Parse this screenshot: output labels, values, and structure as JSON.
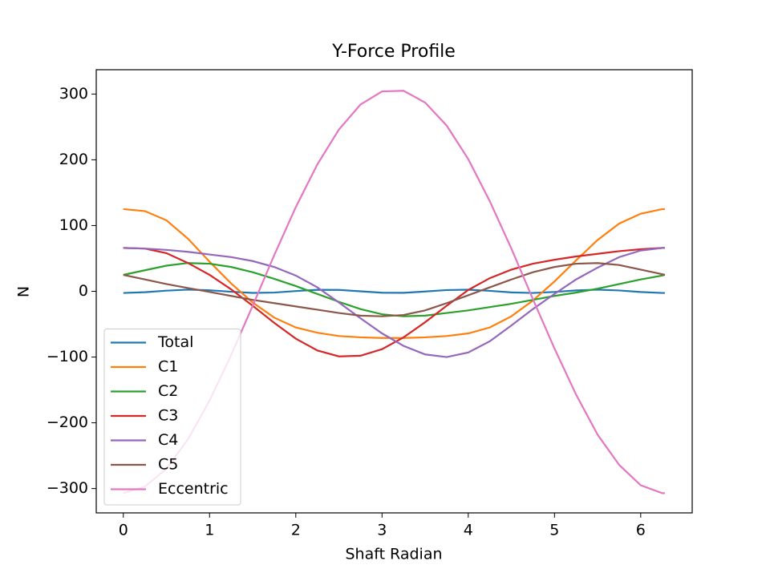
{
  "chart_data": {
    "type": "line",
    "title": "Y-Force Profile",
    "xlabel": "Shaft Radian",
    "ylabel": "N",
    "x": [
      0,
      0.25,
      0.5,
      0.75,
      1,
      1.25,
      1.5,
      1.75,
      2,
      2.25,
      2.5,
      2.75,
      3,
      3.25,
      3.5,
      3.75,
      4,
      4.25,
      4.5,
      4.75,
      5,
      5.25,
      5.5,
      5.75,
      6,
      6.25,
      6.28
    ],
    "series": [
      {
        "name": "Total",
        "color": "#1f77b4",
        "values": [
          -2.5,
          -1.4,
          1,
          2.5,
          1.6,
          -0.7,
          -2.4,
          -1.9,
          0.4,
          2.3,
          2.1,
          0,
          -2.1,
          -2.3,
          -0.3,
          1.9,
          2.4,
          0.7,
          -1.7,
          -2.5,
          -1,
          1.4,
          2.5,
          1.3,
          -1.1,
          -2.5,
          -2.5
        ]
      },
      {
        "name": "C1",
        "color": "#ff7f0e",
        "values": [
          125,
          122,
          108,
          80,
          45,
          12,
          -17,
          -40,
          -55,
          -63,
          -68,
          -70,
          -71,
          -71,
          -70,
          -68,
          -64,
          -55,
          -38,
          -14,
          15,
          47,
          78,
          103,
          118,
          125,
          125
        ]
      },
      {
        "name": "C2",
        "color": "#2ca02c",
        "values": [
          25,
          32,
          39,
          43,
          42,
          37,
          29,
          19,
          8,
          -4,
          -16,
          -27,
          -35,
          -38,
          -37,
          -33,
          -29,
          -24,
          -19,
          -13,
          -7,
          -2,
          4,
          11,
          18,
          24,
          25
        ]
      },
      {
        "name": "C3",
        "color": "#d62728",
        "values": [
          66,
          65,
          58,
          43,
          25,
          3,
          -22,
          -48,
          -72,
          -90,
          -99,
          -98,
          -88,
          -70,
          -47,
          -22,
          2,
          20,
          33,
          42,
          48,
          53,
          57,
          61,
          64,
          66,
          66
        ]
      },
      {
        "name": "C4",
        "color": "#9467bd",
        "values": [
          66,
          65,
          63,
          60,
          56,
          52,
          46,
          37,
          24,
          6,
          -17,
          -41,
          -64,
          -83,
          -96,
          -100,
          -93,
          -76,
          -52,
          -27,
          -4,
          18,
          36,
          52,
          62,
          66,
          66
        ]
      },
      {
        "name": "C5",
        "color": "#8c564b",
        "values": [
          25,
          18,
          11,
          5,
          -1,
          -7,
          -13,
          -18,
          -23,
          -28,
          -33,
          -37,
          -38,
          -36,
          -29,
          -18,
          -6,
          6,
          18,
          29,
          37,
          42,
          43,
          40,
          33,
          26,
          25
        ]
      },
      {
        "name": "Eccentric",
        "color": "#e377c2",
        "values": [
          -307,
          -297,
          -270,
          -225,
          -166,
          -97,
          -22,
          55,
          128,
          193,
          246,
          284,
          304,
          305,
          287,
          252,
          201,
          137,
          65,
          -12,
          -87,
          -157,
          -218,
          -264,
          -295,
          -307,
          -307
        ]
      }
    ],
    "xlim": [
      -0.314,
      6.597
    ],
    "ylim": [
      -337,
      337
    ],
    "xticks": [
      0,
      1,
      2,
      3,
      4,
      5,
      6
    ],
    "yticks": [
      {
        "value": -300,
        "label": "−300"
      },
      {
        "value": -200,
        "label": "−200"
      },
      {
        "value": -100,
        "label": "−100"
      },
      0,
      100,
      200,
      300
    ],
    "legend": "lower left"
  }
}
